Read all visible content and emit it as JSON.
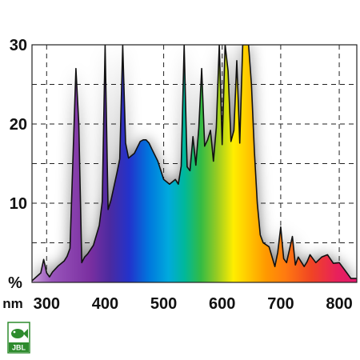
{
  "chart_data": {
    "type": "area",
    "title": "",
    "xlabel": "",
    "ylabel": "",
    "x_unit": "nm",
    "y_unit": "%",
    "xlim": [
      275,
      830
    ],
    "ylim": [
      0,
      30
    ],
    "x_ticks": [
      300,
      400,
      500,
      600,
      700,
      800
    ],
    "y_ticks": [
      10,
      20,
      30
    ],
    "x_tick_labels": [
      "300",
      "400",
      "500",
      "600",
      "700",
      "800"
    ],
    "y_tick_labels": [
      "10",
      "20",
      "30"
    ],
    "grid": true,
    "fill": "visible-spectrum gradient",
    "series": [
      {
        "x": [
          275,
          290,
          295,
          300,
          305,
          310,
          320,
          330,
          335,
          340,
          350,
          355,
          360,
          365,
          370,
          380,
          390,
          395,
          400,
          405,
          410,
          420,
          425,
          430,
          435,
          440,
          450,
          460,
          465,
          470,
          475,
          480,
          490,
          500,
          510,
          520,
          525,
          530,
          535,
          540,
          545,
          550,
          555,
          560,
          565,
          570,
          575,
          580,
          585,
          590,
          595,
          600,
          605,
          610,
          615,
          620,
          625,
          630,
          635,
          640,
          645,
          650,
          655,
          660,
          665,
          670,
          680,
          690,
          695,
          700,
          705,
          710,
          720,
          725,
          730,
          735,
          740,
          745,
          750,
          760,
          770,
          780,
          790,
          800,
          810,
          820,
          830
        ],
        "values": [
          0.2,
          1.2,
          2.9,
          1.2,
          0.7,
          1.3,
          2.1,
          2.7,
          3.3,
          4.3,
          27.0,
          20.0,
          2.5,
          3.2,
          3.6,
          4.7,
          7.2,
          10.2,
          30.0,
          9.2,
          10.4,
          13.8,
          15.6,
          30.0,
          17.6,
          15.7,
          16.3,
          17.8,
          18.0,
          18.0,
          17.6,
          16.8,
          15.3,
          13.0,
          12.4,
          13.0,
          12.4,
          14.7,
          30.0,
          14.6,
          14.1,
          18.4,
          14.8,
          19.5,
          27.0,
          17.2,
          18.0,
          19.2,
          15.3,
          19.6,
          30.0,
          17.4,
          30.0,
          26.7,
          17.8,
          19.2,
          28.0,
          17.6,
          30.0,
          30.0,
          30.0,
          25.0,
          16.5,
          10.0,
          6.0,
          5.0,
          4.5,
          2.0,
          3.8,
          7.0,
          3.0,
          2.5,
          5.8,
          2.2,
          3.2,
          2.6,
          2.0,
          2.6,
          3.5,
          2.5,
          3.2,
          3.5,
          2.4,
          2.5,
          1.5,
          0.5,
          0.5
        ]
      }
    ]
  },
  "logo": {
    "text": "JBL",
    "fish_color": "#2e8b2e"
  }
}
